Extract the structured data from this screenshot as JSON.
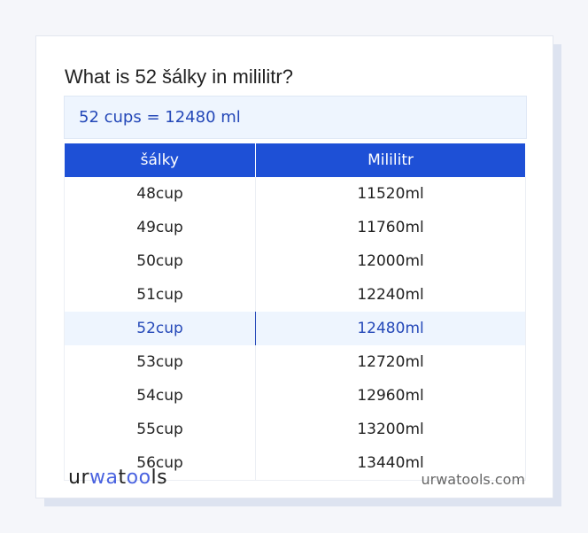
{
  "title": "What is 52 šálky in mililitr?",
  "result": "52 cups = 12480 ml",
  "table": {
    "headers": [
      "šálky",
      "Mililitr"
    ],
    "rows": [
      [
        "48cup",
        "11520ml"
      ],
      [
        "49cup",
        "11760ml"
      ],
      [
        "50cup",
        "12000ml"
      ],
      [
        "51cup",
        "12240ml"
      ],
      [
        "52cup",
        "12480ml"
      ],
      [
        "53cup",
        "12720ml"
      ],
      [
        "54cup",
        "12960ml"
      ],
      [
        "55cup",
        "13200ml"
      ],
      [
        "56cup",
        "13440ml"
      ]
    ],
    "highlighted_row": 4
  },
  "logo": "urwatools",
  "site": "urwatools.com",
  "colors": {
    "header": "#1e50d6",
    "highlight_text": "#2448b8",
    "highlight_bg": "#eef5fe"
  }
}
